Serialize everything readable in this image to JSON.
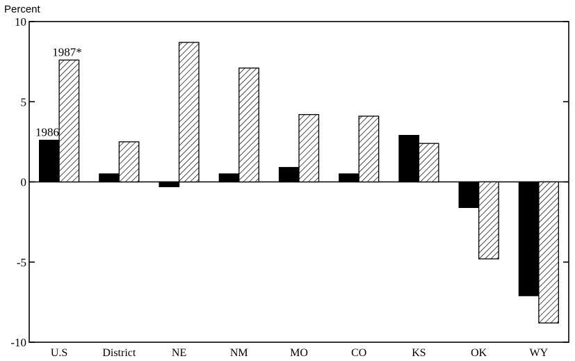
{
  "chart_data": {
    "type": "bar",
    "ylabel": "Percent",
    "ylim": [
      -10,
      10
    ],
    "yticks": [
      10,
      5,
      0,
      -5,
      -10
    ],
    "categories": [
      "U.S",
      "District",
      "NE",
      "NM",
      "MO",
      "CO",
      "KS",
      "OK",
      "WY"
    ],
    "series": [
      {
        "name": "1986",
        "color": "#000000",
        "fill": "solid",
        "values": [
          2.6,
          0.5,
          -0.3,
          0.5,
          0.9,
          0.5,
          2.9,
          -1.6,
          -7.1
        ]
      },
      {
        "name": "1987*",
        "color": "#000000",
        "fill": "diagonal-hatch",
        "values": [
          7.6,
          2.5,
          8.7,
          7.1,
          4.2,
          4.1,
          2.4,
          -4.8,
          -8.8
        ]
      }
    ],
    "grid": false,
    "legend": "inline labels on U.S bars"
  }
}
